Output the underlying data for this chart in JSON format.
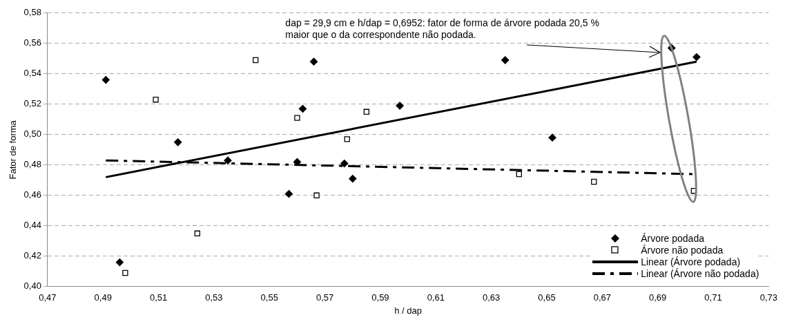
{
  "chart_data": {
    "type": "scatter",
    "xlabel": "h / dap",
    "ylabel": "Fator de forma",
    "xlim": [
      0.47,
      0.73
    ],
    "xticks": [
      {
        "value": 0.47,
        "label": "0,47"
      },
      {
        "value": 0.49,
        "label": "0,49"
      },
      {
        "value": 0.51,
        "label": "0,51"
      },
      {
        "value": 0.53,
        "label": "0,53"
      },
      {
        "value": 0.55,
        "label": "0,55"
      },
      {
        "value": 0.57,
        "label": "0,57"
      },
      {
        "value": 0.59,
        "label": "0,59"
      },
      {
        "value": 0.61,
        "label": "0,61"
      },
      {
        "value": 0.63,
        "label": "0,63"
      },
      {
        "value": 0.65,
        "label": "0,65"
      },
      {
        "value": 0.67,
        "label": "0,67"
      },
      {
        "value": 0.69,
        "label": "0,69"
      },
      {
        "value": 0.71,
        "label": "0,71"
      },
      {
        "value": 0.73,
        "label": "0,73"
      }
    ],
    "ylim": [
      0.4,
      0.58
    ],
    "yticks": [
      {
        "value": 0.4,
        "label": "0,40"
      },
      {
        "value": 0.42,
        "label": "0,42"
      },
      {
        "value": 0.44,
        "label": "0,44"
      },
      {
        "value": 0.46,
        "label": "0,46"
      },
      {
        "value": 0.48,
        "label": "0,48"
      },
      {
        "value": 0.5,
        "label": "0,50"
      },
      {
        "value": 0.52,
        "label": "0,52"
      },
      {
        "value": 0.54,
        "label": "0,54"
      },
      {
        "value": 0.56,
        "label": "0,56"
      },
      {
        "value": 0.58,
        "label": "0,58"
      }
    ],
    "grid": "y",
    "legend": "bottom right",
    "series": [
      {
        "name": "Árvore podada",
        "type": "scatter",
        "marker": "diamond",
        "color": "#000000",
        "x": [
          0.491,
          0.496,
          0.517,
          0.535,
          0.557,
          0.56,
          0.562,
          0.566,
          0.577,
          0.58,
          0.597,
          0.635,
          0.652,
          0.695,
          0.704
        ],
        "values": [
          0.536,
          0.416,
          0.495,
          0.483,
          0.461,
          0.482,
          0.517,
          0.548,
          0.481,
          0.471,
          0.519,
          0.549,
          0.498,
          0.557,
          0.551
        ]
      },
      {
        "name": "Árvore não podada",
        "type": "scatter",
        "marker": "square",
        "color": "#000000",
        "x": [
          0.498,
          0.509,
          0.524,
          0.545,
          0.56,
          0.567,
          0.578,
          0.585,
          0.64,
          0.667,
          0.703
        ],
        "values": [
          0.409,
          0.523,
          0.435,
          0.549,
          0.511,
          0.46,
          0.497,
          0.515,
          0.474,
          0.469,
          0.463
        ]
      },
      {
        "name": "Linear (Árvore podada)",
        "type": "line",
        "line_style": "solid",
        "color": "#000000",
        "x": [
          0.491,
          0.704
        ],
        "values": [
          0.472,
          0.548
        ]
      },
      {
        "name": "Linear (Árvore não podada)",
        "type": "line",
        "line_style": "dashed",
        "color": "#000000",
        "x": [
          0.491,
          0.703
        ],
        "values": [
          0.483,
          0.474
        ]
      }
    ],
    "annotations": [
      "dap = 29,9 cm e h/dap = 0,6952: fator de forma de árvore podada 20,5 % maior que o da correspondente não podada."
    ]
  }
}
